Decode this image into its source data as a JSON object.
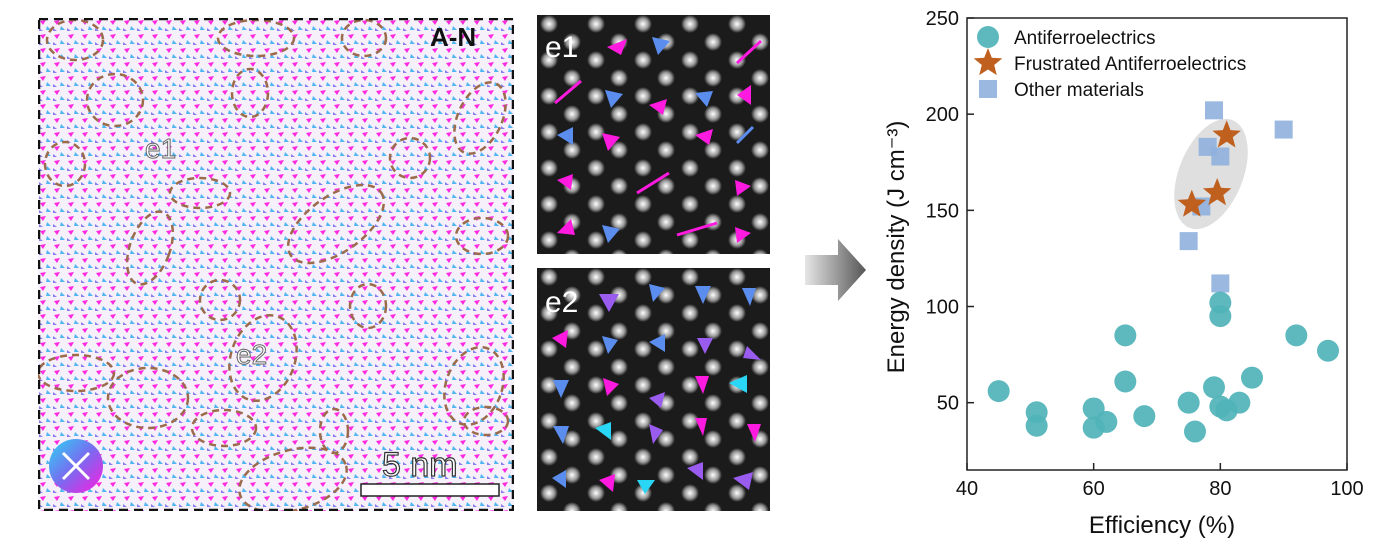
{
  "map": {
    "label": "A-N",
    "region1_label": "e1",
    "region2_label": "e2",
    "scalebar_label": "5 nm"
  },
  "zoom1": {
    "label": "e1"
  },
  "zoom2": {
    "label": "e2"
  },
  "colors": {
    "magenta": "#ff1ae0",
    "blue": "#5b8def",
    "cyan": "#2ad6f5",
    "violet": "#9a5bef",
    "teal_point": "#4fb3b8",
    "star": "#c0601f",
    "square": "#8fb0dd",
    "ellipse_dash": "#9b6b4b"
  },
  "chart_data": {
    "type": "scatter",
    "xlabel": "Efficiency (%)",
    "ylabel": "Energy density (J cm⁻³)",
    "xlim": [
      40,
      100
    ],
    "ylim": [
      15,
      250
    ],
    "xticks": [
      "40",
      "60",
      "80",
      "100"
    ],
    "yticks": [
      "50",
      "100",
      "150",
      "200",
      "250"
    ],
    "legend_position": "top-left",
    "series": [
      {
        "name": "Antiferroelectrics",
        "marker": "circle",
        "color": "#4fb3b8",
        "points": [
          [
            45,
            56
          ],
          [
            51,
            45
          ],
          [
            51,
            38
          ],
          [
            60,
            47
          ],
          [
            60,
            37
          ],
          [
            62,
            40
          ],
          [
            65,
            85
          ],
          [
            65,
            61
          ],
          [
            68,
            43
          ],
          [
            75,
            50
          ],
          [
            76,
            35
          ],
          [
            79,
            58
          ],
          [
            80,
            102
          ],
          [
            80,
            95
          ],
          [
            80,
            48
          ],
          [
            81,
            46
          ],
          [
            83,
            50
          ],
          [
            85,
            63
          ],
          [
            92,
            85
          ],
          [
            97,
            77
          ]
        ]
      },
      {
        "name": "Frustrated Antiferroelectrics",
        "marker": "star",
        "color": "#c0601f",
        "points": [
          [
            75.5,
            153
          ],
          [
            79.5,
            159
          ],
          [
            81,
            189
          ]
        ]
      },
      {
        "name": "Other materials",
        "marker": "square",
        "color": "#8fb0dd",
        "points": [
          [
            75,
            134
          ],
          [
            77,
            152
          ],
          [
            78,
            183
          ],
          [
            79,
            202
          ],
          [
            80,
            178
          ],
          [
            80,
            112
          ],
          [
            90,
            192
          ]
        ]
      }
    ]
  }
}
